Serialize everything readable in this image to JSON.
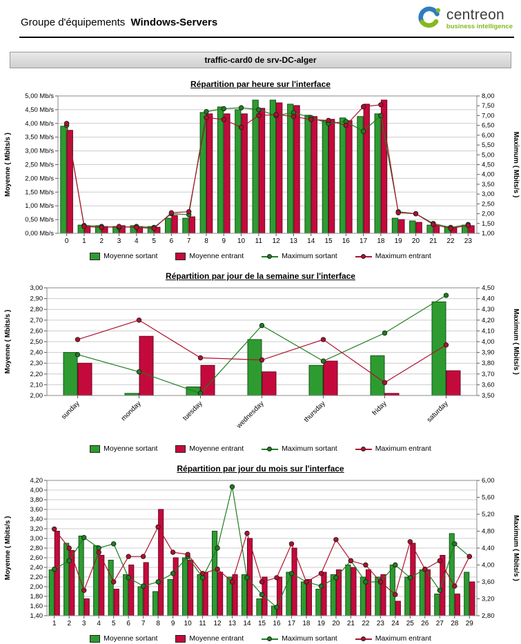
{
  "header": {
    "title_prefix": "Groupe d'équipements",
    "title_bold": "Windows-Servers",
    "logo": {
      "brand": "centreon",
      "tagline": "business intelligence"
    }
  },
  "report_bar": {
    "title": "traffic-card0 de srv-DC-alger"
  },
  "legend": {
    "moyenne_sortant": "Moyenne sortant",
    "moyenne_entrant": "Moyenne entrant",
    "maximum_sortant": "Maximum sortant",
    "maximum_entrant": "Maximum entrant"
  },
  "colors": {
    "bar_sortant": "#2e9b31",
    "bar_sortant_border": "#14541a",
    "bar_entrant": "#c40a3c",
    "bar_entrant_border": "#6d0522",
    "line_max_sortant": "#1e7d1e",
    "line_max_entrant": "#b0102e",
    "marker_stroke": "#1a1a1a",
    "grid": "#cccccc",
    "plot_border": "#888888",
    "brand_blue": "#2d7dc1",
    "brand_green": "#86b81f",
    "brand_text": "#3d3d3d"
  },
  "chart_data": [
    {
      "name": "hourly",
      "type": "bar",
      "title": "Répartition par heure sur l'interface",
      "ylabel_left": "Moyenne ( Mbits/s )",
      "ylabel_right": "Maximum ( Mbits/s )",
      "rotate_labels": false,
      "left_axis": {
        "min": 0,
        "max": 5,
        "step": 0.5,
        "suffix": " Mb/s"
      },
      "right_axis": {
        "min": 1,
        "max": 8,
        "step": 0.5,
        "suffix": ""
      },
      "categories": [
        "0",
        "1",
        "2",
        "3",
        "4",
        "5",
        "6",
        "7",
        "8",
        "9",
        "10",
        "11",
        "12",
        "13",
        "14",
        "15",
        "16",
        "17",
        "18",
        "19",
        "20",
        "21",
        "22",
        "23"
      ],
      "series": [
        {
          "name": "Moyenne sortant",
          "type": "bar",
          "axis": "left",
          "values": [
            3.9,
            0.3,
            0.28,
            0.25,
            0.28,
            0.25,
            0.55,
            0.55,
            4.4,
            4.6,
            4.5,
            4.85,
            4.85,
            4.7,
            4.3,
            4.1,
            4.2,
            4.25,
            4.35,
            0.55,
            0.45,
            0.3,
            0.25,
            0.3
          ]
        },
        {
          "name": "Moyenne entrant",
          "type": "bar",
          "axis": "left",
          "values": [
            3.75,
            0.28,
            0.25,
            0.28,
            0.25,
            0.22,
            0.65,
            0.6,
            4.35,
            4.35,
            4.35,
            4.55,
            4.75,
            4.65,
            4.25,
            4.15,
            4.1,
            4.7,
            4.85,
            0.5,
            0.4,
            0.28,
            0.22,
            0.28
          ]
        },
        {
          "name": "Maximum sortant",
          "type": "line",
          "axis": "right",
          "values": [
            6.5,
            1.4,
            1.35,
            1.3,
            1.35,
            1.3,
            2.0,
            1.95,
            7.2,
            7.35,
            7.4,
            7.3,
            7.0,
            7.15,
            6.9,
            6.6,
            6.7,
            6.2,
            7.0,
            2.1,
            2.0,
            1.5,
            1.3,
            1.45
          ]
        },
        {
          "name": "Maximum entrant",
          "type": "line",
          "axis": "right",
          "values": [
            6.6,
            1.35,
            1.3,
            1.35,
            1.3,
            1.25,
            2.05,
            2.1,
            6.9,
            6.8,
            6.4,
            7.0,
            7.05,
            6.95,
            6.8,
            6.75,
            6.5,
            7.45,
            7.55,
            2.05,
            2.0,
            1.45,
            1.25,
            1.4
          ]
        }
      ]
    },
    {
      "name": "weekly",
      "type": "bar",
      "title": "Répartition par jour de la semaine sur l'interface",
      "ylabel_left": "Moyenne ( Mbits/s )",
      "ylabel_right": "Maximum ( Mbits/s )",
      "rotate_labels": true,
      "left_axis": {
        "min": 2,
        "max": 3,
        "step": 0.1,
        "suffix": ""
      },
      "right_axis": {
        "min": 3.5,
        "max": 4.5,
        "step": 0.1,
        "suffix": ""
      },
      "categories": [
        "sunday",
        "monday",
        "tuesday",
        "wednesday",
        "thursday",
        "friday",
        "saturday"
      ],
      "series": [
        {
          "name": "Moyenne sortant",
          "type": "bar",
          "axis": "left",
          "values": [
            2.4,
            2.02,
            2.08,
            2.52,
            2.28,
            2.37,
            2.87
          ]
        },
        {
          "name": "Moyenne entrant",
          "type": "bar",
          "axis": "left",
          "values": [
            2.3,
            2.55,
            2.28,
            2.22,
            2.32,
            2.02,
            2.23
          ]
        },
        {
          "name": "Maximum sortant",
          "type": "line",
          "axis": "right",
          "values": [
            3.88,
            3.72,
            3.52,
            4.15,
            3.82,
            4.08,
            4.43
          ]
        },
        {
          "name": "Maximum entrant",
          "type": "line",
          "axis": "right",
          "values": [
            4.02,
            4.2,
            3.85,
            3.83,
            4.02,
            3.62,
            3.97
          ]
        }
      ]
    },
    {
      "name": "monthly",
      "type": "bar",
      "title": "Répartition par jour du mois sur l'interface",
      "ylabel_left": "Moyenne ( Mbits/s )",
      "ylabel_right": "Maximum ( Mbits/s )",
      "rotate_labels": false,
      "left_axis": {
        "min": 1.4,
        "max": 4.2,
        "step": 0.2,
        "suffix": ""
      },
      "right_axis": {
        "min": 2.8,
        "max": 6.0,
        "step": 0.4,
        "suffix": ""
      },
      "categories": [
        "1",
        "2",
        "3",
        "4",
        "5",
        "6",
        "7",
        "8",
        "9",
        "10",
        "11",
        "12",
        "13",
        "14",
        "15",
        "16",
        "17",
        "18",
        "19",
        "20",
        "21",
        "22",
        "23",
        "24",
        "25",
        "26",
        "27",
        "28",
        "29"
      ],
      "series": [
        {
          "name": "Moyenne sortant",
          "type": "bar",
          "axis": "left",
          "values": [
            2.35,
            2.9,
            3.05,
            2.85,
            2.55,
            2.25,
            2.0,
            1.9,
            2.15,
            2.6,
            2.25,
            3.15,
            2.2,
            2.25,
            1.75,
            1.6,
            2.3,
            2.1,
            1.95,
            2.25,
            2.45,
            2.2,
            2.2,
            2.45,
            2.2,
            2.35,
            1.85,
            3.1,
            2.3
          ]
        },
        {
          "name": "Moyenne entrant",
          "type": "bar",
          "axis": "left",
          "values": [
            3.15,
            2.75,
            1.75,
            2.65,
            1.95,
            2.45,
            2.5,
            3.6,
            2.6,
            2.55,
            2.3,
            2.3,
            2.25,
            3.0,
            2.2,
            2.2,
            2.8,
            2.15,
            2.3,
            2.35,
            2.4,
            2.35,
            2.25,
            1.7,
            2.9,
            2.35,
            2.65,
            1.85,
            2.1
          ]
        },
        {
          "name": "Maximum sortant",
          "type": "line",
          "axis": "right",
          "values": [
            3.9,
            4.1,
            4.65,
            4.4,
            4.5,
            3.7,
            3.5,
            3.6,
            3.8,
            4.2,
            3.7,
            4.4,
            5.85,
            3.7,
            3.3,
            3.0,
            3.8,
            3.6,
            3.5,
            3.7,
            4.1,
            3.6,
            3.6,
            4.0,
            3.7,
            3.9,
            3.4,
            4.5,
            4.2
          ]
        },
        {
          "name": "Maximum entrant",
          "type": "line",
          "axis": "right",
          "values": [
            4.85,
            4.4,
            3.4,
            4.3,
            3.6,
            4.2,
            4.2,
            4.9,
            4.3,
            4.25,
            3.8,
            3.9,
            3.6,
            4.75,
            3.6,
            3.7,
            4.5,
            3.6,
            3.8,
            4.6,
            4.1,
            4.0,
            3.6,
            3.3,
            4.55,
            3.9,
            4.1,
            3.5,
            4.2
          ]
        }
      ]
    }
  ]
}
